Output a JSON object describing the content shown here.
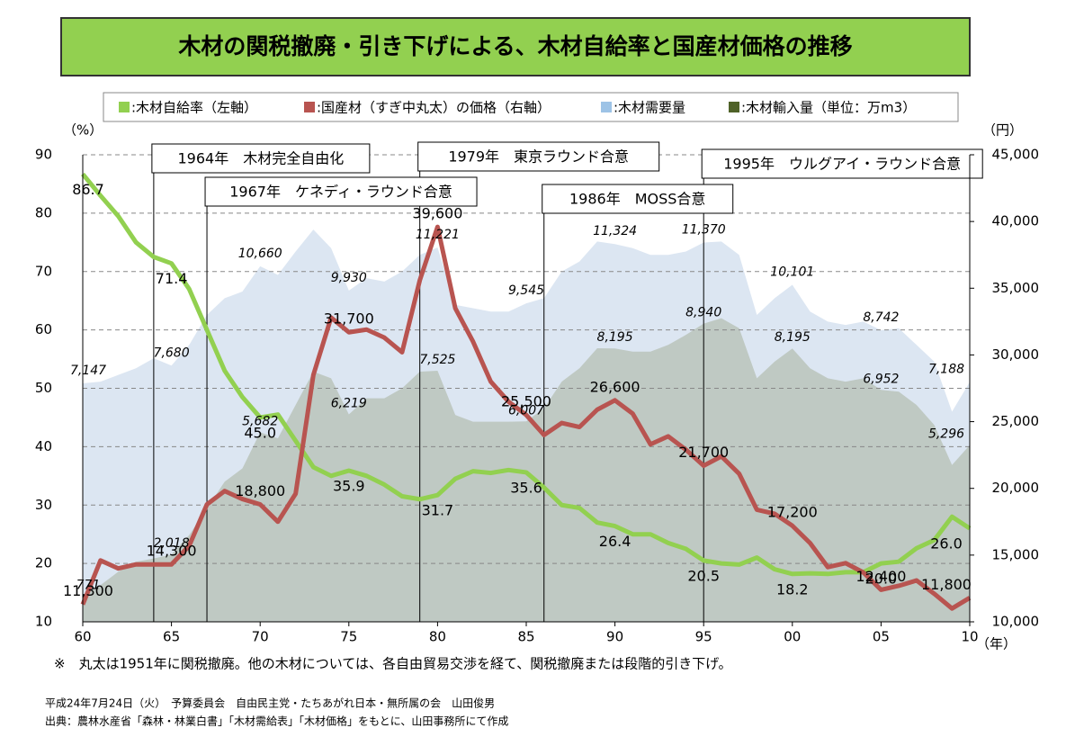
{
  "chart_data": {
    "type": "line",
    "title": "木材の関税撤廃・引き下げによる、木材自給率と国産材価格の推移",
    "ylabel": "（%）",
    "y2label": "（円）",
    "xlabel": "（年）",
    "x": [
      1960,
      1961,
      1962,
      1963,
      1964,
      1965,
      1966,
      1967,
      1968,
      1969,
      1970,
      1971,
      1972,
      1973,
      1974,
      1975,
      1976,
      1977,
      1978,
      1979,
      1980,
      1981,
      1982,
      1983,
      1984,
      1985,
      1986,
      1987,
      1988,
      1989,
      1990,
      1991,
      1992,
      1993,
      1994,
      1995,
      1996,
      1997,
      1998,
      1999,
      2000,
      2001,
      2002,
      2003,
      2004,
      2005,
      2006,
      2007,
      2008,
      2009,
      2010
    ],
    "xlim": [
      1960,
      2010
    ],
    "xticks": [
      {
        "value": 1960,
        "label": "60"
      },
      {
        "value": 1965,
        "label": "65"
      },
      {
        "value": 1970,
        "label": "70"
      },
      {
        "value": 1975,
        "label": "75"
      },
      {
        "value": 1980,
        "label": "80"
      },
      {
        "value": 1985,
        "label": "85"
      },
      {
        "value": 1990,
        "label": "90"
      },
      {
        "value": 1995,
        "label": "95"
      },
      {
        "value": 2000,
        "label": "00"
      },
      {
        "value": 2005,
        "label": "05"
      },
      {
        "value": 2010,
        "label": "10"
      }
    ],
    "ylim": [
      10,
      90
    ],
    "yticks": [
      10,
      20,
      30,
      40,
      50,
      60,
      70,
      80,
      90
    ],
    "y2lim": [
      10000,
      45000
    ],
    "y2ticks": [
      {
        "value": 10000,
        "label": "10,000"
      },
      {
        "value": 15000,
        "label": "15,000"
      },
      {
        "value": 20000,
        "label": "20,000"
      },
      {
        "value": 25000,
        "label": "25,000"
      },
      {
        "value": 30000,
        "label": "30,000"
      },
      {
        "value": 35000,
        "label": "35,000"
      },
      {
        "value": 40000,
        "label": "40,000"
      },
      {
        "value": 45000,
        "label": "45,000"
      }
    ],
    "y3lim": [
      0,
      14000
    ],
    "grid": true,
    "series": [
      {
        "name": ":木材需要量",
        "color": "#9dc3e6",
        "fill": "#dce6f2",
        "axis": "y3",
        "kind": "area",
        "values": [
          7147,
          7200,
          7400,
          7600,
          7900,
          7680,
          8300,
          9200,
          9700,
          9900,
          10660,
          10400,
          11100,
          11758,
          11200,
          9930,
          10300,
          10200,
          10500,
          11000,
          11221,
          9500,
          9400,
          9300,
          9300,
          9545,
          9700,
          10500,
          10800,
          11400,
          11324,
          11200,
          11000,
          11000,
          11100,
          11370,
          11400,
          11000,
          9200,
          9700,
          10101,
          9300,
          9000,
          8900,
          9000,
          8742,
          8800,
          8300,
          7800,
          6300,
          7188
        ],
        "value_labels": [
          "7,147",
          null,
          null,
          null,
          null,
          "7,680",
          null,
          null,
          null,
          null,
          "10,660",
          null,
          null,
          null,
          null,
          "9,930",
          null,
          null,
          null,
          null,
          "11,221",
          null,
          null,
          null,
          null,
          "9,545",
          null,
          null,
          null,
          null,
          "11,324",
          null,
          null,
          null,
          null,
          "11,370",
          null,
          null,
          null,
          null,
          "10,101",
          null,
          null,
          null,
          null,
          "8,742",
          null,
          null,
          null,
          null,
          "7,188"
        ]
      },
      {
        "name": ":木材輸入量（単位：万m3）",
        "color": "#4f6228",
        "fill": "#bfc9c3",
        "axis": "y3",
        "kind": "area",
        "values": [
          771,
          1100,
          1500,
          1800,
          1900,
          2018,
          2600,
          3400,
          4200,
          4600,
          5682,
          5500,
          6500,
          7500,
          7300,
          6219,
          6700,
          6700,
          7000,
          7500,
          7525,
          6200,
          6000,
          6000,
          6000,
          6007,
          6400,
          7200,
          7600,
          8200,
          8195,
          8100,
          8100,
          8300,
          8600,
          8940,
          9100,
          8800,
          7300,
          7800,
          8195,
          7600,
          7300,
          7200,
          7300,
          6952,
          6900,
          6500,
          5900,
          4700,
          5296
        ],
        "value_labels": [
          "771",
          null,
          null,
          null,
          null,
          "2,018",
          null,
          null,
          null,
          null,
          "5,682",
          null,
          null,
          null,
          null,
          "6,219",
          null,
          null,
          null,
          null,
          "7,525",
          null,
          null,
          null,
          null,
          "6,007",
          null,
          null,
          null,
          null,
          "8,195",
          null,
          null,
          null,
          null,
          "8,940",
          null,
          null,
          null,
          null,
          "8,195",
          null,
          null,
          null,
          null,
          "6,952",
          null,
          null,
          null,
          null,
          "5,296"
        ]
      },
      {
        "name": ":木材自給率（左軸）",
        "color": "#92d050",
        "axis": "y",
        "kind": "line",
        "values": [
          86.7,
          83,
          79.5,
          75,
          72.5,
          71.4,
          67,
          60,
          53,
          48.5,
          45.0,
          45.5,
          41,
          36.5,
          35,
          35.9,
          35,
          33.5,
          31.5,
          31,
          31.7,
          34.5,
          35.8,
          35.5,
          36,
          35.6,
          33,
          30,
          29.5,
          27,
          26.4,
          25,
          25,
          23.5,
          22.5,
          20.5,
          20,
          19.8,
          21,
          19,
          18.2,
          18.3,
          18.2,
          18.5,
          18.5,
          20.0,
          20.3,
          22.6,
          24,
          28,
          26.0
        ],
        "value_labels": [
          "86.7",
          null,
          null,
          null,
          null,
          "71.4",
          null,
          null,
          null,
          null,
          "45.0",
          null,
          null,
          null,
          null,
          "35.9",
          null,
          null,
          null,
          null,
          "31.7",
          null,
          null,
          null,
          null,
          "35.6",
          null,
          null,
          null,
          null,
          "26.4",
          null,
          null,
          null,
          null,
          "20.5",
          null,
          null,
          null,
          null,
          "18.2",
          null,
          null,
          null,
          null,
          "20.0",
          null,
          null,
          null,
          null,
          "26.0"
        ]
      },
      {
        "name": ":国産材（すぎ中丸太）の価格（右軸）",
        "color": "#b85450",
        "axis": "y2",
        "kind": "line",
        "values": [
          11300,
          14600,
          14000,
          14300,
          14300,
          14300,
          15700,
          18800,
          19800,
          19200,
          18800,
          17500,
          19600,
          28500,
          32800,
          31700,
          31900,
          31300,
          30200,
          35600,
          39600,
          33500,
          31000,
          28000,
          26500,
          25500,
          24000,
          24900,
          24600,
          25900,
          26600,
          25600,
          23300,
          23900,
          22900,
          21700,
          22400,
          21100,
          18400,
          18100,
          17200,
          15900,
          14100,
          14400,
          13700,
          12400,
          12700,
          13100,
          12100,
          11000,
          11800
        ],
        "value_labels": [
          "11,300",
          null,
          null,
          null,
          null,
          "14,300",
          null,
          null,
          null,
          null,
          "18,800",
          null,
          null,
          null,
          null,
          "31,700",
          null,
          null,
          null,
          null,
          "39,600",
          null,
          null,
          null,
          null,
          "25,500",
          null,
          null,
          null,
          null,
          "26,600",
          null,
          null,
          null,
          null,
          "21,700",
          null,
          null,
          null,
          null,
          "17,200",
          null,
          null,
          null,
          null,
          "12,400",
          null,
          null,
          null,
          null,
          "11,800"
        ]
      }
    ],
    "legend_order": [
      2,
      3,
      0,
      1
    ],
    "events": [
      {
        "x": 1964,
        "label": "1964年　木材完全自由化"
      },
      {
        "x": 1967,
        "label": "1967年　ケネディ・ラウンド合意"
      },
      {
        "x": 1979,
        "label": "1979年　東京ラウンド合意"
      },
      {
        "x": 1986,
        "label": "1986年　MOSS合意"
      },
      {
        "x": 1995,
        "label": "1995年　ウルグアイ・ラウンド合意"
      }
    ],
    "note": "※　丸太は1951年に関税撤廃。他の木材については、各自由貿易交渉を経て、関税撤廃または段階的引き下げ。",
    "footnotes": [
      "平成24年7月24日（火）　予算委員会　自由民主党・たちあがれ日本・無所属の会　山田俊男",
      "出典：農林水産省「森林・林業白書」「木材需給表」「木材価格」をもとに、山田事務所にて作成"
    ]
  }
}
